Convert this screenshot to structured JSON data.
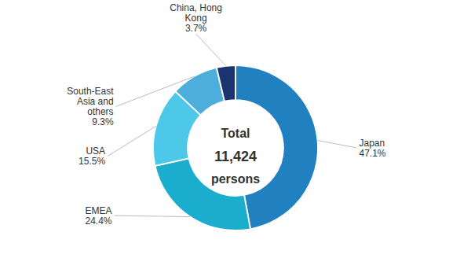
{
  "chart_data": {
    "type": "donut",
    "annotations": [
      "Total",
      "11,424",
      "persons"
    ],
    "categories": [
      "Japan",
      "EMEA",
      "USA",
      "South-East\nAsia and\nothers",
      "China, Hong\nKong"
    ],
    "values": [
      47.1,
      24.4,
      15.5,
      9.3,
      3.7
    ],
    "value_labels": [
      "47.1%",
      "24.4%",
      "15.5%",
      "9.3%",
      "3.7%"
    ],
    "colors": [
      "#2080C0",
      "#1AADCE",
      "#4EC8E8",
      "#4DAEDC",
      "#1A3470"
    ],
    "data_labels": true
  }
}
